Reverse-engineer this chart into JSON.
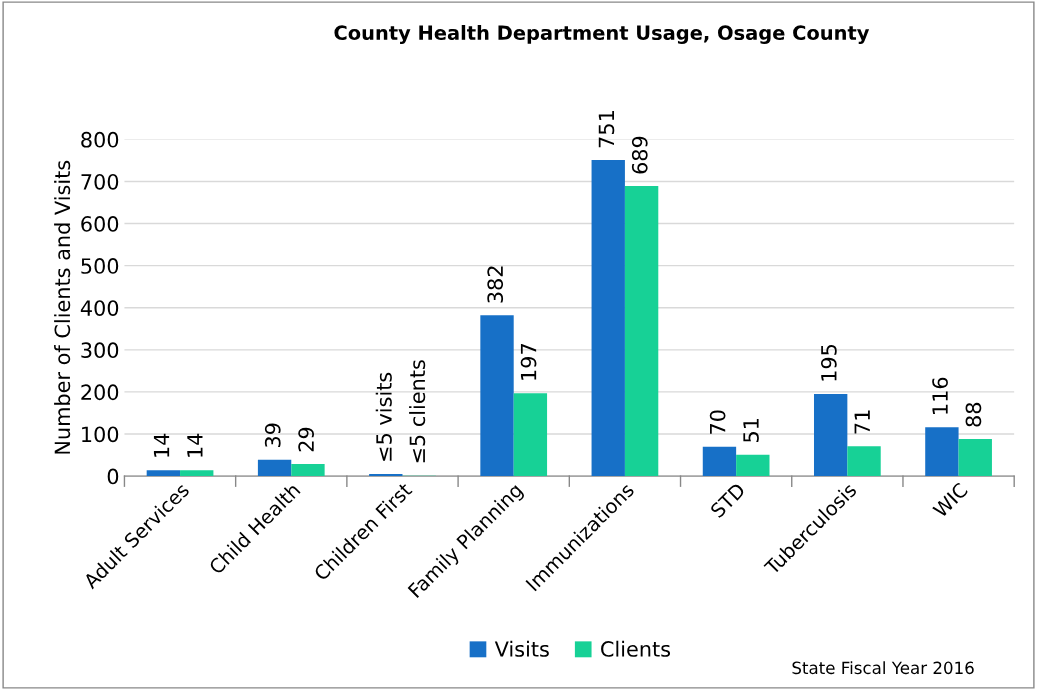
{
  "chart_data": {
    "type": "bar",
    "title": "County Health Department Usage, Osage County",
    "ylabel": "Number of Clients and Visits",
    "categories": [
      "Adult Services",
      "Child Health",
      "Children First",
      "Family Planning",
      "Immunizations",
      "STD",
      "Tuberculosis",
      "WIC"
    ],
    "series": [
      {
        "name": "Visits",
        "color": "#1770c7",
        "values": [
          14,
          39,
          5,
          382,
          751,
          70,
          195,
          116
        ],
        "value_labels": [
          "14",
          "39",
          "≤5 visits",
          "382",
          "751",
          "70",
          "195",
          "116"
        ]
      },
      {
        "name": "Clients",
        "color": "#17d196",
        "values": [
          14,
          29,
          1,
          197,
          689,
          51,
          71,
          88
        ],
        "value_labels": [
          "14",
          "29",
          "≤5 clients",
          "197",
          "689",
          "51",
          "71",
          "88"
        ]
      }
    ],
    "ylim": [
      0,
      800
    ],
    "yticks": [
      0,
      100,
      200,
      300,
      400,
      500,
      600,
      700,
      800
    ],
    "grid": "y",
    "legend": "bottom",
    "annotations": [
      "State Fiscal Year 2016"
    ]
  }
}
